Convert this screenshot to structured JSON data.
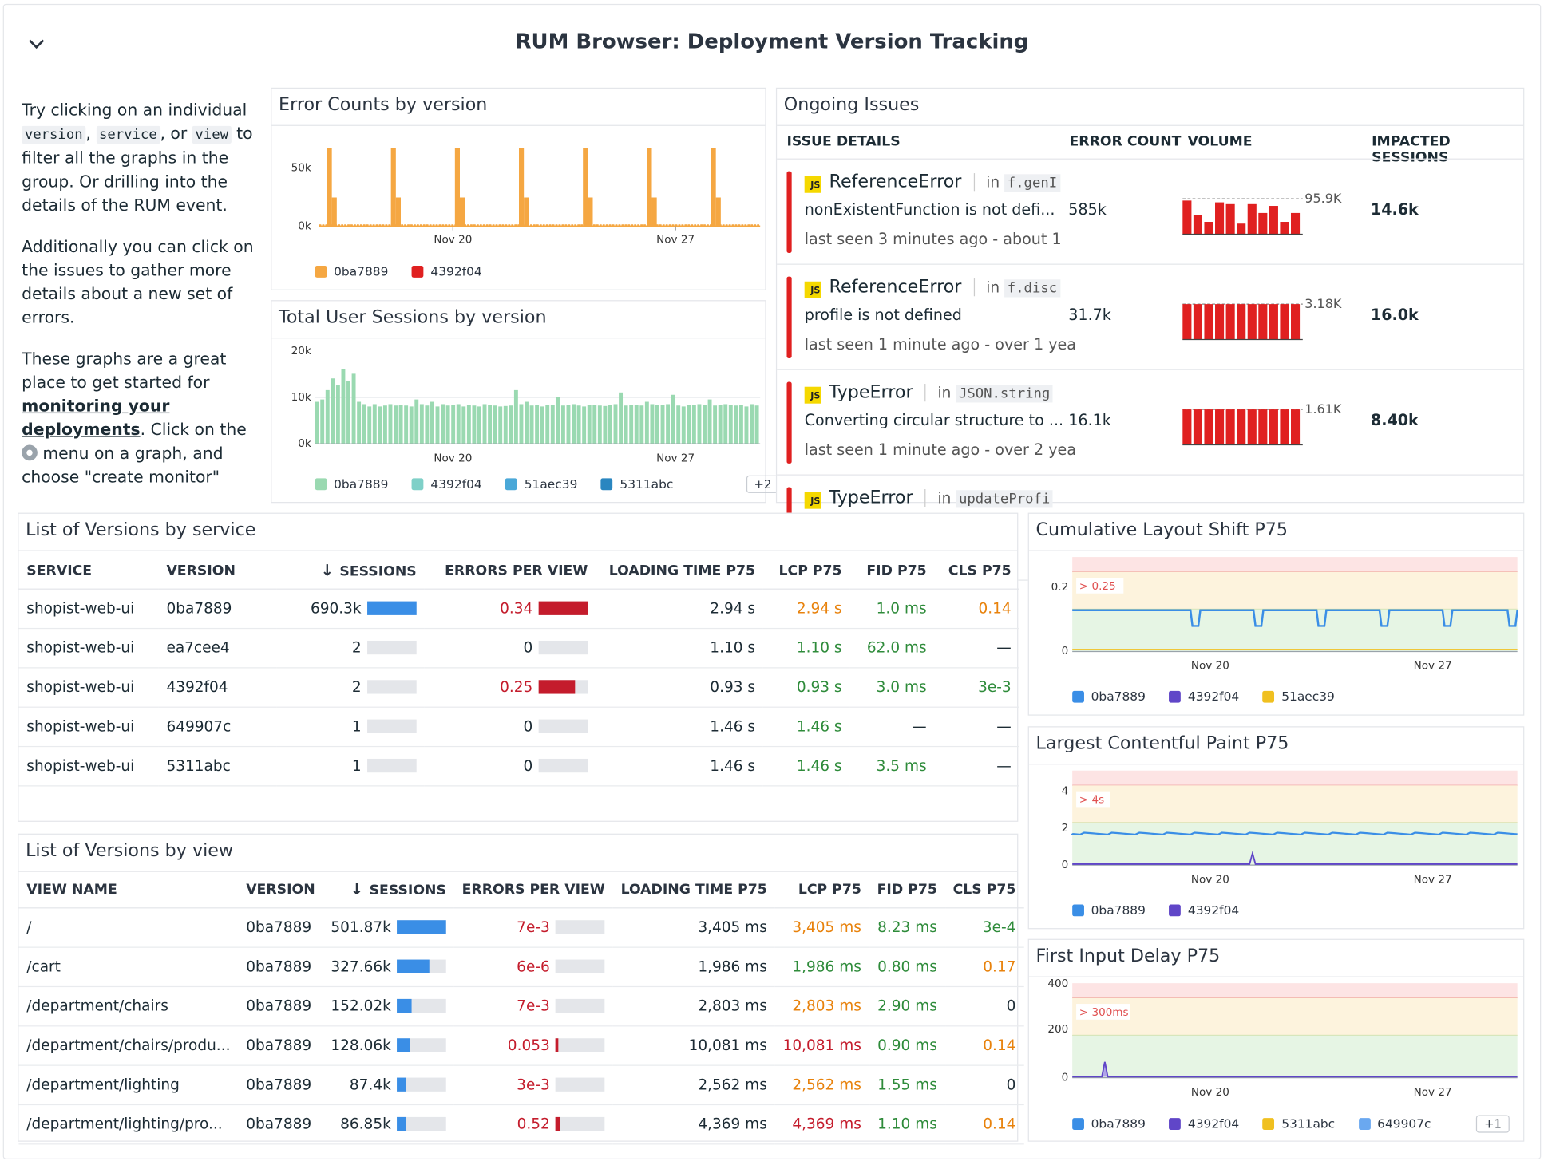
{
  "header": {
    "title": "RUM Browser: Deployment Version Tracking"
  },
  "note": {
    "p1_a": "Try clicking on an individual ",
    "p1_code1": "version",
    "p1_b": ", ",
    "p1_code2": "service",
    "p1_c": ", or ",
    "p1_code3": "view",
    "p1_d": " to filter all the graphs in the group. Or drilling into the details of the RUM event.",
    "p2": "Additionally you can click on the issues to gather more details about a new set of errors.",
    "p3_a": "These graphs are a great place to get started for ",
    "p3_link": "monitoring your deployments",
    "p3_b": ". Click on the ",
    "p3_c": " menu on a graph, and choose \"create monitor\""
  },
  "colors": {
    "orange": "#f5a742",
    "red": "#e02020",
    "mint": "#9ad9b1",
    "blue": "#3a8ee6",
    "purple": "#6046c8",
    "yellow": "#f0c020",
    "lightblue": "#6aa8f0",
    "gray": "#e4e6ea"
  },
  "error_counts": {
    "title": "Error Counts by version",
    "chart_data": {
      "type": "bar",
      "ylabel": "",
      "y_ticks": [
        "50k",
        "0k"
      ],
      "x_ticks": [
        "Nov 20",
        "Nov 27"
      ],
      "ylim": [
        0,
        60000
      ],
      "series": [
        {
          "name": "0ba7889",
          "peaks": [
            60000,
            60000,
            60000,
            60000,
            60000,
            60000,
            60000
          ],
          "secondary": [
            22000,
            22000,
            22000,
            22000,
            22000,
            22000,
            22000
          ]
        },
        {
          "name": "4392f04",
          "values": []
        }
      ]
    },
    "legend": [
      {
        "name": "0ba7889",
        "color": "#f5a742"
      },
      {
        "name": "4392f04",
        "color": "#e02020"
      }
    ]
  },
  "sessions": {
    "title": "Total User Sessions by version",
    "chart_data": {
      "type": "bar",
      "y_ticks": [
        "20k",
        "10k",
        "0k"
      ],
      "x_ticks": [
        "Nov 20",
        "Nov 27"
      ],
      "ylim": [
        0,
        20000
      ],
      "values": [
        9000,
        9500,
        11500,
        14000,
        12500,
        16000,
        13500,
        15000,
        9000,
        8500,
        8000,
        8500,
        8000,
        8200,
        8500,
        8200,
        8300,
        8200,
        8000,
        9500,
        8500,
        8200,
        9000,
        8000,
        8500,
        8200,
        8300,
        8500,
        8000,
        8400,
        8200,
        8000,
        8500,
        8300,
        8200,
        8000,
        8100,
        8200,
        11500,
        8500,
        9000,
        8200,
        8300,
        8000,
        8400,
        8300,
        10000,
        8200,
        8300,
        8500,
        8200,
        8000,
        8400,
        8300,
        8200,
        8100,
        8400,
        8500,
        11000,
        8200,
        8300,
        8400,
        8200,
        9000,
        8500,
        8300,
        8400,
        8500,
        10500,
        8200,
        8000,
        8300,
        8400,
        8500,
        8300,
        9500,
        8200,
        8300,
        8500,
        8400,
        8200,
        8300,
        8000,
        8500,
        8200
      ]
    },
    "legend": [
      {
        "name": "0ba7889",
        "color": "#9ad9b1"
      },
      {
        "name": "4392f04",
        "color": "#7fd0c8"
      },
      {
        "name": "51aec39",
        "color": "#4aa8d8"
      },
      {
        "name": "5311abc",
        "color": "#2a86c0"
      }
    ],
    "more": "+2"
  },
  "issues": {
    "title": "Ongoing Issues",
    "headers": {
      "details": "ISSUE DETAILS",
      "count": "ERROR COUNT",
      "volume": "VOLUME",
      "sessions": "IMPACTED SESSIONS"
    },
    "rows": [
      {
        "name": "ReferenceError",
        "in": "in",
        "loc": "f.genI",
        "msg": "nonExistentFunction is not defi...",
        "seen": "last seen 3 minutes ago - about 1",
        "count": "585k",
        "peak": "95.9K",
        "sessions": "14.6k",
        "vol": [
          0.95,
          0.55,
          0.35,
          0.9,
          0.85,
          0.3,
          0.85,
          0.6,
          0.8,
          0.35,
          0.6
        ]
      },
      {
        "name": "ReferenceError",
        "in": "in",
        "loc": "f.disc",
        "msg": "profile is not defined",
        "seen": "last seen 1 minute ago - over 1 yea",
        "count": "31.7k",
        "peak": "3.18K",
        "sessions": "16.0k",
        "vol": [
          1,
          1,
          1,
          1,
          1,
          1,
          1,
          1,
          1,
          1,
          1
        ]
      },
      {
        "name": "TypeError",
        "in": "in",
        "loc": "JSON.string",
        "msg": "Converting circular structure to ...",
        "seen": "last seen 1 minute ago - over 2 yea",
        "count": "16.1k",
        "peak": "1.61K",
        "sessions": "8.40k",
        "vol": [
          1,
          1,
          1,
          1,
          1,
          1,
          1,
          1,
          1,
          1,
          1
        ]
      },
      {
        "name": "TypeError",
        "in": "in",
        "loc": "updateProfi",
        "msg": "",
        "seen": "",
        "count": "",
        "peak": "",
        "sessions": "",
        "vol": []
      }
    ]
  },
  "by_service": {
    "title": "List of Versions by service",
    "headers": {
      "service": "SERVICE",
      "version": "VERSION",
      "sort": "↓",
      "sessions": "SESSIONS",
      "epv": "ERRORS PER VIEW",
      "lt": "LOADING TIME P75",
      "lcp": "LCP P75",
      "fid": "FID P75",
      "cls": "CLS P75"
    },
    "rows": [
      {
        "service": "shopist-web-ui",
        "version": "0ba7889",
        "sessions": "690.3k",
        "sbar": 1.0,
        "epv": "0.34",
        "ebar": 1.0,
        "lt": "2.94 s",
        "lcp": "2.94 s",
        "fid": "1.0 ms",
        "cls": "0.14",
        "epvc": "red",
        "lcpc": "orange",
        "fidc": "green",
        "clsc": "orange"
      },
      {
        "service": "shopist-web-ui",
        "version": "ea7cee4",
        "sessions": "2",
        "sbar": 0,
        "epv": "0",
        "ebar": 0,
        "lt": "1.10 s",
        "lcp": "1.10 s",
        "fid": "62.0 ms",
        "cls": "—",
        "epvc": "",
        "lcpc": "green",
        "fidc": "green",
        "clsc": ""
      },
      {
        "service": "shopist-web-ui",
        "version": "4392f04",
        "sessions": "2",
        "sbar": 0,
        "epv": "0.25",
        "ebar": 0.74,
        "lt": "0.93 s",
        "lcp": "0.93 s",
        "fid": "3.0 ms",
        "cls": "3e-3",
        "epvc": "red",
        "lcpc": "green",
        "fidc": "green",
        "clsc": "green"
      },
      {
        "service": "shopist-web-ui",
        "version": "649907c",
        "sessions": "1",
        "sbar": 0,
        "epv": "0",
        "ebar": 0,
        "lt": "1.46 s",
        "lcp": "1.46 s",
        "fid": "—",
        "cls": "—",
        "epvc": "",
        "lcpc": "green",
        "fidc": "",
        "clsc": ""
      },
      {
        "service": "shopist-web-ui",
        "version": "5311abc",
        "sessions": "1",
        "sbar": 0,
        "epv": "0",
        "ebar": 0,
        "lt": "1.46 s",
        "lcp": "1.46 s",
        "fid": "3.5 ms",
        "cls": "—",
        "epvc": "",
        "lcpc": "green",
        "fidc": "green",
        "clsc": ""
      }
    ]
  },
  "by_view": {
    "title": "List of Versions by view",
    "headers": {
      "view": "VIEW NAME",
      "version": "VERSION",
      "sort": "↓",
      "sessions": "SESSIONS",
      "epv": "ERRORS PER VIEW",
      "lt": "LOADING TIME P75",
      "lcp": "LCP P75",
      "fid": "FID P75",
      "cls": "CLS P75"
    },
    "rows": [
      {
        "view": "/",
        "version": "0ba7889",
        "sessions": "501.87k",
        "sbar": 1.0,
        "epv": "7e-3",
        "ebar": 0,
        "lt": "3,405 ms",
        "lcp": "3,405 ms",
        "fid": "8.23 ms",
        "cls": "3e-4",
        "epvc": "red",
        "lcpc": "orange",
        "fidc": "green",
        "clsc": "green"
      },
      {
        "view": "/cart",
        "version": "0ba7889",
        "sessions": "327.66k",
        "sbar": 0.65,
        "epv": "6e-6",
        "ebar": 0,
        "lt": "1,986 ms",
        "lcp": "1,986 ms",
        "fid": "0.80 ms",
        "cls": "0.17",
        "epvc": "red",
        "lcpc": "green",
        "fidc": "green",
        "clsc": "orange"
      },
      {
        "view": "/department/chairs",
        "version": "0ba7889",
        "sessions": "152.02k",
        "sbar": 0.3,
        "epv": "7e-3",
        "ebar": 0,
        "lt": "2,803 ms",
        "lcp": "2,803 ms",
        "fid": "2.90 ms",
        "cls": "0",
        "epvc": "red",
        "lcpc": "orange",
        "fidc": "green",
        "clsc": ""
      },
      {
        "view": "/department/chairs/produ...",
        "version": "0ba7889",
        "sessions": "128.06k",
        "sbar": 0.25,
        "epv": "0.053",
        "ebar": 0.05,
        "lt": "10,081 ms",
        "lcp": "10,081 ms",
        "fid": "0.90 ms",
        "cls": "0.14",
        "epvc": "red",
        "lcpc": "red",
        "fidc": "green",
        "clsc": "orange"
      },
      {
        "view": "/department/lighting",
        "version": "0ba7889",
        "sessions": "87.4k",
        "sbar": 0.17,
        "epv": "3e-3",
        "ebar": 0,
        "lt": "2,562 ms",
        "lcp": "2,562 ms",
        "fid": "1.55 ms",
        "cls": "0",
        "epvc": "red",
        "lcpc": "orange",
        "fidc": "green",
        "clsc": ""
      },
      {
        "view": "/department/lighting/pro...",
        "version": "0ba7889",
        "sessions": "86.85k",
        "sbar": 0.17,
        "epv": "0.52",
        "ebar": 0.1,
        "lt": "4,369 ms",
        "lcp": "4,369 ms",
        "fid": "1.10 ms",
        "cls": "0.14",
        "epvc": "red",
        "lcpc": "red",
        "fidc": "green",
        "clsc": "orange"
      }
    ]
  },
  "cls_chart": {
    "title": "Cumulative Layout Shift P75",
    "threshold": "> 0.25",
    "y_ticks": [
      "0.2",
      "0"
    ],
    "x_ticks": [
      "Nov 20",
      "Nov 27"
    ],
    "legend": [
      {
        "name": "0ba7889",
        "color": "#3a8ee6"
      },
      {
        "name": "4392f04",
        "color": "#6046c8"
      },
      {
        "name": "51aec39",
        "color": "#f0c020"
      }
    ],
    "chart_data": {
      "type": "line",
      "ylim": [
        0,
        0.3
      ],
      "baseline": 0.14,
      "dips": [
        0.1
      ]
    }
  },
  "lcp_chart": {
    "title": "Largest Contentful Paint P75",
    "threshold": "> 4s",
    "y_ticks": [
      "4",
      "2",
      "0"
    ],
    "x_ticks": [
      "Nov 20",
      "Nov 27"
    ],
    "legend": [
      {
        "name": "0ba7889",
        "color": "#3a8ee6"
      },
      {
        "name": "4392f04",
        "color": "#6046c8"
      }
    ],
    "chart_data": {
      "type": "line",
      "ylim": [
        0,
        5
      ],
      "baseline": 1.6
    }
  },
  "fid_chart": {
    "title": "First Input Delay P75",
    "threshold": "> 300ms",
    "y_ticks": [
      "400",
      "200",
      "0"
    ],
    "x_ticks": [
      "Nov 20",
      "Nov 27"
    ],
    "legend": [
      {
        "name": "0ba7889",
        "color": "#3a8ee6"
      },
      {
        "name": "4392f04",
        "color": "#6046c8"
      },
      {
        "name": "5311abc",
        "color": "#f0c020"
      },
      {
        "name": "649907c",
        "color": "#6aa8f0"
      }
    ],
    "more": "+1",
    "chart_data": {
      "type": "line",
      "ylim": [
        0,
        400
      ],
      "spike": 60
    }
  }
}
